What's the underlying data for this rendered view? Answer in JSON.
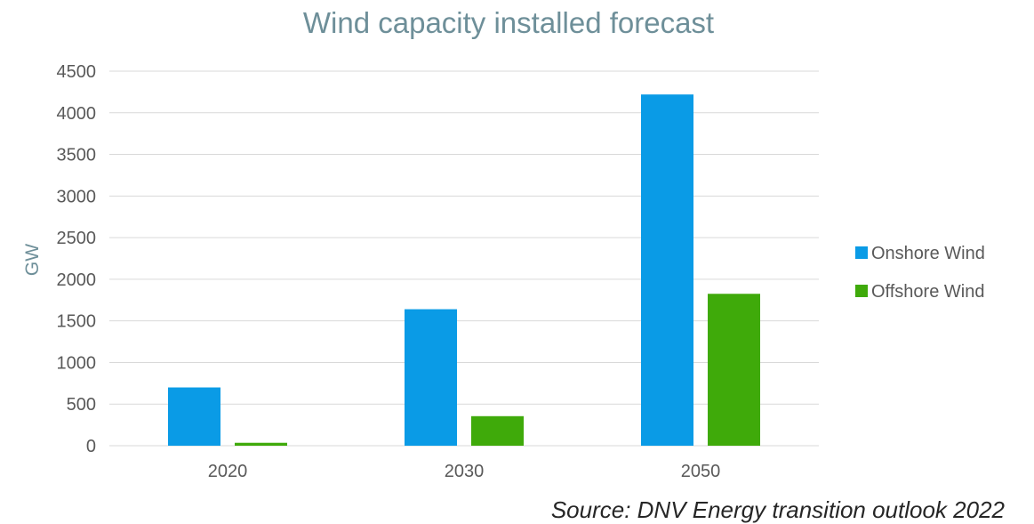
{
  "chart_data": {
    "type": "bar",
    "title": "Wind capacity installed forecast",
    "xlabel": "",
    "ylabel": "GW",
    "categories": [
      "2020",
      "2030",
      "2050"
    ],
    "series": [
      {
        "name": "Onshore Wind",
        "color": "#0a9be6",
        "values": [
          700,
          1640,
          4220
        ]
      },
      {
        "name": "Offshore Wind",
        "color": "#3faa0a",
        "values": [
          35,
          355,
          1825
        ]
      }
    ],
    "ylim": [
      0,
      4500
    ],
    "yticks": [
      0,
      500,
      1000,
      1500,
      2000,
      2500,
      3000,
      3500,
      4000,
      4500
    ],
    "grid": true,
    "legend_position": "right"
  },
  "source_note": "Source: DNV Energy transition outlook 2022"
}
